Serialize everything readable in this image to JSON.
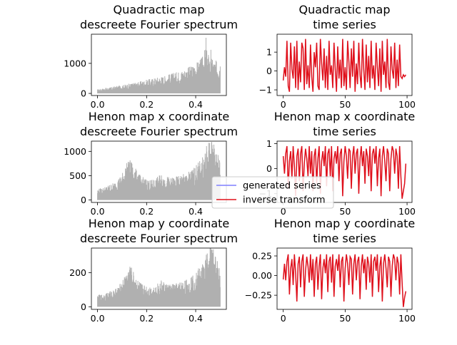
{
  "chart_data": [
    {
      "type": "area",
      "title_lines": [
        "Quadractic map",
        "descreete Fourier spectrum"
      ],
      "xlabel": "",
      "ylabel": "",
      "xlim": [
        -0.025,
        0.525
      ],
      "ylim": [
        -70,
        1970
      ],
      "xticks": [
        0.0,
        0.2,
        0.4
      ],
      "xtick_labels": [
        "0.0",
        "0.2",
        "0.4"
      ],
      "yticks": [
        0,
        1000
      ],
      "ytick_labels": [
        "0",
        "1000"
      ],
      "series": [
        {
          "color": "#b0b0b0",
          "x": [
            0.0,
            0.025,
            0.05,
            0.075,
            0.1,
            0.125,
            0.15,
            0.175,
            0.2,
            0.225,
            0.25,
            0.275,
            0.3,
            0.325,
            0.35,
            0.375,
            0.4,
            0.41,
            0.42,
            0.43,
            0.44,
            0.45,
            0.46,
            0.47,
            0.48,
            0.49,
            0.5
          ],
          "values": [
            120,
            150,
            180,
            210,
            240,
            280,
            310,
            350,
            400,
            440,
            490,
            520,
            580,
            630,
            700,
            780,
            880,
            950,
            1000,
            1100,
            1350,
            1200,
            1050,
            1000,
            950,
            950,
            1000
          ],
          "peaks": [
            [
              0.442,
              1850
            ],
            [
              0.462,
              1450
            ]
          ]
        }
      ]
    },
    {
      "type": "line",
      "title_lines": [
        "Quadractic map",
        "time series"
      ],
      "xlabel": "",
      "ylabel": "",
      "xlim": [
        -5,
        104
      ],
      "ylim": [
        -1.3,
        1.95
      ],
      "xticks": [
        0,
        50,
        100
      ],
      "xtick_labels": [
        "0",
        "50",
        "100"
      ],
      "yticks": [
        -1,
        0,
        1
      ],
      "ytick_labels": [
        "−1",
        "0",
        "1"
      ],
      "series": [
        {
          "name": "generated series",
          "color": "#7f7fff",
          "values": [
            -0.5,
            0.2,
            -0.3,
            1.6,
            -0.8,
            -1.1,
            1.5,
            0.1,
            -0.4,
            1.3,
            -0.9,
            1.6,
            -1.0,
            0.5,
            -0.6,
            1.5,
            1.2,
            -1.0,
            1.7,
            -0.7,
            0.3,
            -0.9,
            1.4,
            -0.3,
            -1.1,
            1.0,
            0.2,
            1.5,
            -0.8,
            -1.0,
            1.7,
            0.4,
            -0.5,
            1.2,
            -0.9,
            0.8,
            -1.0,
            1.6,
            -0.2,
            0.3,
            -0.9,
            1.5,
            0.1,
            -1.1,
            1.3,
            -0.4,
            0.6,
            -0.9,
            1.7,
            -0.8,
            0.2,
            -1.0,
            1.6,
            0.5,
            -0.9,
            1.2,
            -0.3,
            1.6,
            -1.1,
            0.4,
            -0.7,
            1.5,
            -0.2,
            -0.9,
            1.7,
            0.1,
            -1.0,
            1.4,
            -0.6,
            0.8,
            -0.9,
            1.6,
            -0.4,
            0.3,
            -1.0,
            1.5,
            0.2,
            -0.8,
            1.2,
            -1.1,
            1.6,
            -0.2,
            0.5,
            -0.9,
            1.7,
            -0.6,
            -1.0,
            1.3,
            0.1,
            -0.4,
            1.5,
            -0.9,
            0.6,
            -0.8,
            1.4,
            -0.3,
            -0.4,
            -0.2,
            -0.3,
            -0.2
          ]
        },
        {
          "name": "inverse transform",
          "color": "#e0101a",
          "values": [
            -0.5,
            0.2,
            -0.3,
            1.6,
            -0.8,
            -1.1,
            1.5,
            0.1,
            -0.4,
            1.3,
            -0.9,
            1.6,
            -1.0,
            0.5,
            -0.6,
            1.5,
            1.2,
            -1.0,
            1.7,
            -0.7,
            0.3,
            -0.9,
            1.4,
            -0.3,
            -1.1,
            1.0,
            0.2,
            1.5,
            -0.8,
            -1.0,
            1.7,
            0.4,
            -0.5,
            1.2,
            -0.9,
            0.8,
            -1.0,
            1.6,
            -0.2,
            0.3,
            -0.9,
            1.5,
            0.1,
            -1.1,
            1.3,
            -0.4,
            0.6,
            -0.9,
            1.7,
            -0.8,
            0.2,
            -1.0,
            1.6,
            0.5,
            -0.9,
            1.2,
            -0.3,
            1.6,
            -1.1,
            0.4,
            -0.7,
            1.5,
            -0.2,
            -0.9,
            1.7,
            0.1,
            -1.0,
            1.4,
            -0.6,
            0.8,
            -0.9,
            1.6,
            -0.4,
            0.3,
            -1.0,
            1.5,
            0.2,
            -0.8,
            1.2,
            -1.1,
            1.6,
            -0.2,
            0.5,
            -0.9,
            1.7,
            -0.6,
            -1.0,
            1.3,
            0.1,
            -0.4,
            1.5,
            -0.9,
            0.6,
            -0.8,
            1.4,
            -0.3,
            -0.4,
            -0.2,
            -0.3,
            -0.2
          ]
        }
      ]
    },
    {
      "type": "area",
      "title_lines": [
        "Henon map x coordinate",
        "descreete Fourier spectrum"
      ],
      "xlabel": "",
      "ylabel": "",
      "xlim": [
        -0.025,
        0.525
      ],
      "ylim": [
        -50,
        1210
      ],
      "xticks": [
        0.0,
        0.2,
        0.4
      ],
      "xtick_labels": [
        "0.0",
        "0.2",
        "0.4"
      ],
      "yticks": [
        0,
        500,
        1000
      ],
      "ytick_labels": [
        "0",
        "500",
        "1000"
      ],
      "series": [
        {
          "color": "#b0b0b0",
          "x": [
            0.0,
            0.02,
            0.04,
            0.06,
            0.08,
            0.1,
            0.11,
            0.12,
            0.13,
            0.14,
            0.15,
            0.16,
            0.18,
            0.2,
            0.22,
            0.24,
            0.25,
            0.26,
            0.28,
            0.3,
            0.32,
            0.34,
            0.36,
            0.38,
            0.4,
            0.42,
            0.44,
            0.45,
            0.46,
            0.47,
            0.48,
            0.49,
            0.5
          ],
          "values": [
            200,
            220,
            260,
            300,
            360,
            480,
            580,
            680,
            720,
            700,
            620,
            520,
            420,
            380,
            360,
            390,
            450,
            470,
            430,
            400,
            420,
            450,
            480,
            540,
            620,
            720,
            900,
            1050,
            1100,
            1050,
            950,
            850,
            700
          ],
          "peaks": [
            [
              0.132,
              780
            ],
            [
              0.467,
              1130
            ]
          ]
        }
      ]
    },
    {
      "type": "line",
      "title_lines": [
        "Henon map x coordinate",
        "time series"
      ],
      "xlabel": "",
      "ylabel": "",
      "xlim": [
        -5,
        104
      ],
      "ylim": [
        -1.35,
        1.1
      ],
      "xticks": [
        0,
        50,
        100
      ],
      "xtick_labels": [
        "0",
        "50",
        "100"
      ],
      "yticks": [
        -1,
        0,
        1
      ],
      "ytick_labels": [
        "−1",
        "0",
        "1"
      ],
      "series": [
        {
          "name": "generated series",
          "color": "#7f7fff",
          "values": [
            0.5,
            -0.2,
            0.6,
            0.9,
            -0.8,
            0.3,
            0.7,
            -0.4,
            0.9,
            0.1,
            -1.1,
            0.5,
            0.8,
            -0.5,
            0.6,
            0.9,
            -0.9,
            0.2,
            0.8,
            0.4,
            -0.3,
            0.9,
            -0.2,
            0.7,
            -0.9,
            0.5,
            0.8,
            -0.6,
            0.4,
            0.9,
            -1.0,
            0.3,
            0.7,
            0.1,
            0.9,
            -0.7,
            0.6,
            0.8,
            -0.3,
            0.9,
            -0.9,
            0.4,
            0.7,
            0.2,
            0.9,
            -0.5,
            0.6,
            0.8,
            -1.1,
            0.3,
            0.9,
            0.5,
            -0.4,
            0.8,
            0.7,
            -0.8,
            0.5,
            0.9,
            -0.2,
            0.6,
            0.8,
            -1.0,
            0.4,
            0.9,
            0.1,
            0.7,
            -0.6,
            0.8,
            0.5,
            -0.3,
            0.9,
            -0.9,
            0.6,
            0.8,
            0.2,
            0.9,
            -0.7,
            0.4,
            0.8,
            -1.1,
            0.5,
            0.9,
            0.3,
            -0.5,
            0.8,
            0.6,
            -0.9,
            0.4,
            0.9,
            0.7,
            -0.2,
            0.8,
            0.5,
            -0.8,
            0.9,
            -0.3,
            -1.2,
            -0.9,
            -0.6,
            0.2
          ]
        },
        {
          "name": "inverse transform",
          "color": "#e0101a",
          "values": [
            0.5,
            -0.2,
            0.6,
            0.9,
            -0.8,
            0.3,
            0.7,
            -0.4,
            0.9,
            0.1,
            -1.1,
            0.5,
            0.8,
            -0.5,
            0.6,
            0.9,
            -0.9,
            0.2,
            0.8,
            0.4,
            -0.3,
            0.9,
            -0.2,
            0.7,
            -0.9,
            0.5,
            0.8,
            -0.6,
            0.4,
            0.9,
            -1.0,
            0.3,
            0.7,
            0.1,
            0.9,
            -0.7,
            0.6,
            0.8,
            -0.3,
            0.9,
            -0.9,
            0.4,
            0.7,
            0.2,
            0.9,
            -0.5,
            0.6,
            0.8,
            -1.1,
            0.3,
            0.9,
            0.5,
            -0.4,
            0.8,
            0.7,
            -0.8,
            0.5,
            0.9,
            -0.2,
            0.6,
            0.8,
            -1.0,
            0.4,
            0.9,
            0.1,
            0.7,
            -0.6,
            0.8,
            0.5,
            -0.3,
            0.9,
            -0.9,
            0.6,
            0.8,
            0.2,
            0.9,
            -0.7,
            0.4,
            0.8,
            -1.1,
            0.5,
            0.9,
            0.3,
            -0.5,
            0.8,
            0.6,
            -0.9,
            0.4,
            0.9,
            0.7,
            -0.2,
            0.8,
            0.5,
            -0.8,
            0.9,
            -0.3,
            -1.2,
            -0.9,
            -0.6,
            0.2
          ]
        }
      ]
    },
    {
      "type": "area",
      "title_lines": [
        "Henon map y coordinate",
        "descreete Fourier spectrum"
      ],
      "xlabel": "",
      "ylabel": "",
      "xlim": [
        -0.025,
        0.525
      ],
      "ylim": [
        -15,
        345
      ],
      "xticks": [
        0.0,
        0.2,
        0.4
      ],
      "xtick_labels": [
        "0.0",
        "0.2",
        "0.4"
      ],
      "yticks": [
        0,
        200
      ],
      "ytick_labels": [
        "0",
        "200"
      ],
      "series": [
        {
          "color": "#b0b0b0",
          "x": [
            0.0,
            0.02,
            0.04,
            0.06,
            0.08,
            0.1,
            0.11,
            0.12,
            0.13,
            0.14,
            0.15,
            0.16,
            0.18,
            0.2,
            0.22,
            0.24,
            0.25,
            0.26,
            0.28,
            0.3,
            0.32,
            0.34,
            0.36,
            0.38,
            0.4,
            0.42,
            0.44,
            0.45,
            0.46,
            0.47,
            0.48,
            0.49,
            0.5
          ],
          "values": [
            60,
            65,
            75,
            85,
            100,
            130,
            160,
            190,
            210,
            200,
            170,
            145,
            120,
            110,
            105,
            112,
            130,
            135,
            122,
            115,
            120,
            130,
            140,
            155,
            180,
            210,
            260,
            300,
            320,
            300,
            270,
            240,
            200
          ],
          "peaks": [
            [
              0.132,
              235
            ],
            [
              0.467,
              335
            ]
          ]
        }
      ]
    },
    {
      "type": "line",
      "title_lines": [
        "Henon map y coordinate",
        "time series"
      ],
      "xlabel": "",
      "ylabel": "",
      "xlim": [
        -5,
        104
      ],
      "ylim": [
        -0.43,
        0.35
      ],
      "xticks": [
        0,
        50,
        100
      ],
      "xtick_labels": [
        "0",
        "50",
        "100"
      ],
      "yticks": [
        -0.25,
        0.0,
        0.25
      ],
      "ytick_labels": [
        "−0.25",
        "0.00",
        "0.25"
      ],
      "series": [
        {
          "name": "generated series",
          "color": "#7f7fff",
          "values": [
            -0.05,
            0.15,
            -0.06,
            0.18,
            0.27,
            -0.24,
            0.09,
            0.21,
            -0.12,
            0.27,
            0.03,
            -0.33,
            0.15,
            0.24,
            -0.15,
            0.18,
            0.27,
            -0.27,
            0.06,
            0.24,
            0.12,
            -0.09,
            0.27,
            -0.06,
            0.21,
            -0.27,
            0.15,
            0.24,
            -0.18,
            0.12,
            0.27,
            -0.3,
            0.09,
            0.21,
            0.03,
            0.27,
            -0.21,
            0.18,
            0.24,
            -0.09,
            0.27,
            -0.27,
            0.12,
            0.21,
            0.06,
            0.27,
            -0.15,
            0.18,
            0.24,
            -0.33,
            0.09,
            0.27,
            0.15,
            -0.12,
            0.24,
            0.21,
            -0.24,
            0.15,
            0.27,
            -0.06,
            0.18,
            0.24,
            -0.3,
            0.12,
            0.27,
            0.03,
            0.21,
            -0.18,
            0.24,
            0.15,
            -0.09,
            0.27,
            -0.27,
            0.18,
            0.24,
            0.06,
            0.27,
            -0.21,
            0.12,
            0.24,
            -0.33,
            0.15,
            0.27,
            0.09,
            -0.15,
            0.24,
            0.18,
            -0.27,
            0.12,
            0.27,
            0.21,
            -0.06,
            0.24,
            0.15,
            -0.24,
            0.27,
            -0.09,
            -0.4,
            -0.28,
            -0.2
          ]
        },
        {
          "name": "inverse transform",
          "color": "#e0101a",
          "values": [
            -0.05,
            0.15,
            -0.06,
            0.18,
            0.27,
            -0.24,
            0.09,
            0.21,
            -0.12,
            0.27,
            0.03,
            -0.33,
            0.15,
            0.24,
            -0.15,
            0.18,
            0.27,
            -0.27,
            0.06,
            0.24,
            0.12,
            -0.09,
            0.27,
            -0.06,
            0.21,
            -0.27,
            0.15,
            0.24,
            -0.18,
            0.12,
            0.27,
            -0.3,
            0.09,
            0.21,
            0.03,
            0.27,
            -0.21,
            0.18,
            0.24,
            -0.09,
            0.27,
            -0.27,
            0.12,
            0.21,
            0.06,
            0.27,
            -0.15,
            0.18,
            0.24,
            -0.33,
            0.09,
            0.27,
            0.15,
            -0.12,
            0.24,
            0.21,
            -0.24,
            0.15,
            0.27,
            -0.06,
            0.18,
            0.24,
            -0.3,
            0.12,
            0.27,
            0.03,
            0.21,
            -0.18,
            0.24,
            0.15,
            -0.09,
            0.27,
            -0.27,
            0.18,
            0.24,
            0.06,
            0.27,
            -0.21,
            0.12,
            0.24,
            -0.33,
            0.15,
            0.27,
            0.09,
            -0.15,
            0.24,
            0.18,
            -0.27,
            0.12,
            0.27,
            0.21,
            -0.06,
            0.24,
            0.15,
            -0.24,
            0.27,
            -0.09,
            -0.4,
            -0.28,
            -0.2
          ]
        }
      ]
    }
  ],
  "legend": {
    "placement": "center",
    "entries": [
      {
        "label": "generated series",
        "color": "#7f7fff"
      },
      {
        "label": "inverse transform",
        "color": "#e0101a"
      }
    ]
  }
}
